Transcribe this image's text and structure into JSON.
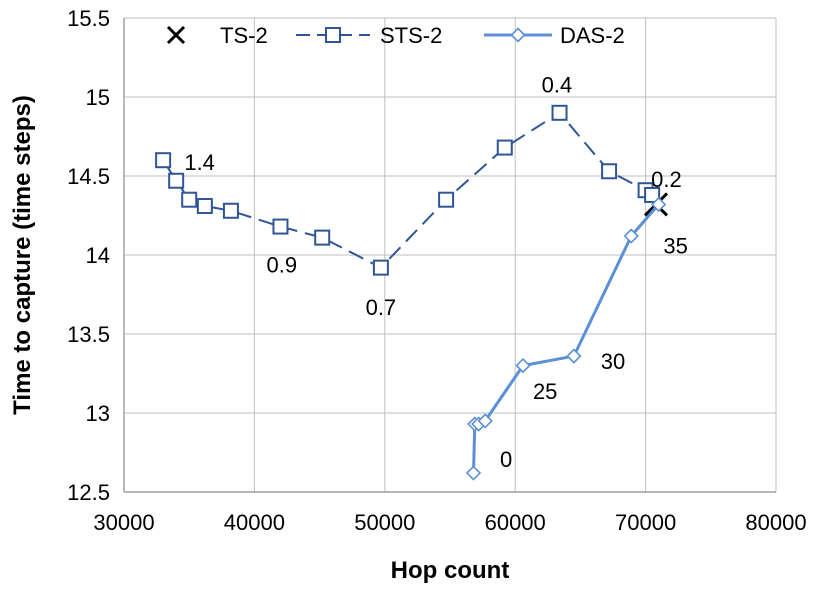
{
  "chart_data": {
    "type": "scatter",
    "xlabel": "Hop count",
    "ylabel": "Time to capture (time steps)",
    "xlim": [
      30000,
      80000
    ],
    "ylim": [
      12.5,
      15.5
    ],
    "xticks": [
      "30000",
      "40000",
      "50000",
      "60000",
      "70000",
      "80000"
    ],
    "yticks": [
      "12.5",
      "13",
      "13.5",
      "14",
      "14.5",
      "15",
      "15.5"
    ],
    "grid": true,
    "legend_position": "top",
    "series": [
      {
        "name": "TS-2",
        "style": "marker-x",
        "color": "#000000",
        "points": [
          [
            70800,
            14.32
          ]
        ]
      },
      {
        "name": "STS-2",
        "style": "dashed-square",
        "color": "#2f5597",
        "points": [
          [
            33000,
            14.6
          ],
          [
            34000,
            14.47
          ],
          [
            35000,
            14.35
          ],
          [
            36200,
            14.31
          ],
          [
            38200,
            14.28
          ],
          [
            42000,
            14.18
          ],
          [
            45200,
            14.11
          ],
          [
            49700,
            13.92
          ],
          [
            54700,
            14.35
          ],
          [
            59200,
            14.68
          ],
          [
            63400,
            14.9
          ],
          [
            67200,
            14.53
          ],
          [
            70000,
            14.41
          ],
          [
            70500,
            14.38
          ]
        ]
      },
      {
        "name": "DAS-2",
        "style": "solid-diamond",
        "color": "#5b8fd6",
        "points": [
          [
            56800,
            12.62
          ],
          [
            56900,
            12.93
          ],
          [
            57200,
            12.93
          ],
          [
            57700,
            12.95
          ],
          [
            60600,
            13.3
          ],
          [
            64500,
            13.36
          ],
          [
            68900,
            14.12
          ],
          [
            71000,
            14.32
          ]
        ]
      }
    ],
    "annotations": [
      {
        "text": "1.4",
        "x": 35800,
        "y": 14.59
      },
      {
        "text": "0.9",
        "x": 42100,
        "y": 13.94
      },
      {
        "text": "0.7",
        "x": 49700,
        "y": 13.67
      },
      {
        "text": "0.4",
        "x": 63200,
        "y": 15.08
      },
      {
        "text": "0.2",
        "x": 71600,
        "y": 14.48
      },
      {
        "text": "35",
        "x": 72300,
        "y": 14.06
      },
      {
        "text": "30",
        "x": 67500,
        "y": 13.33
      },
      {
        "text": "25",
        "x": 62300,
        "y": 13.14
      },
      {
        "text": "0",
        "x": 59300,
        "y": 12.71
      }
    ]
  }
}
